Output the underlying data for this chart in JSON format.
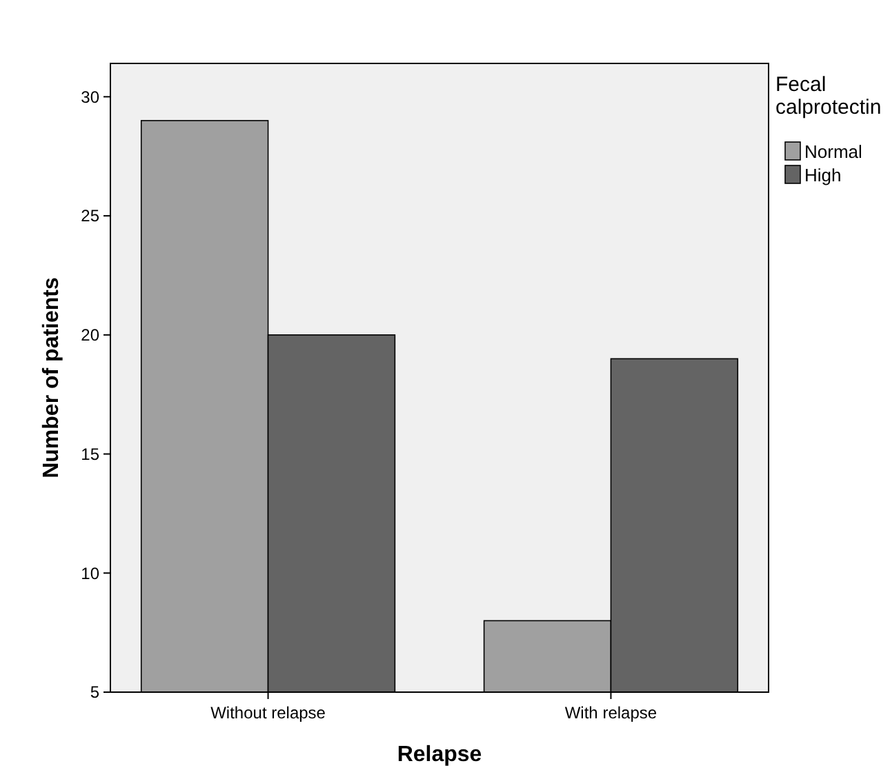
{
  "chart_data": {
    "type": "bar",
    "xlabel": "Relapse",
    "ylabel": "Number of patients",
    "legend_title": "Fecal calprotectin",
    "categories": [
      "Without relapse",
      "With relapse"
    ],
    "series": [
      {
        "name": "Normal",
        "color": "#a0a0a0",
        "values": [
          29,
          8
        ]
      },
      {
        "name": "High",
        "color": "#646464",
        "values": [
          20,
          19
        ]
      }
    ],
    "ylim": [
      5,
      31.4
    ],
    "yticks": [
      5,
      10,
      15,
      20,
      25,
      30
    ],
    "grid": false,
    "legend": "top right"
  }
}
